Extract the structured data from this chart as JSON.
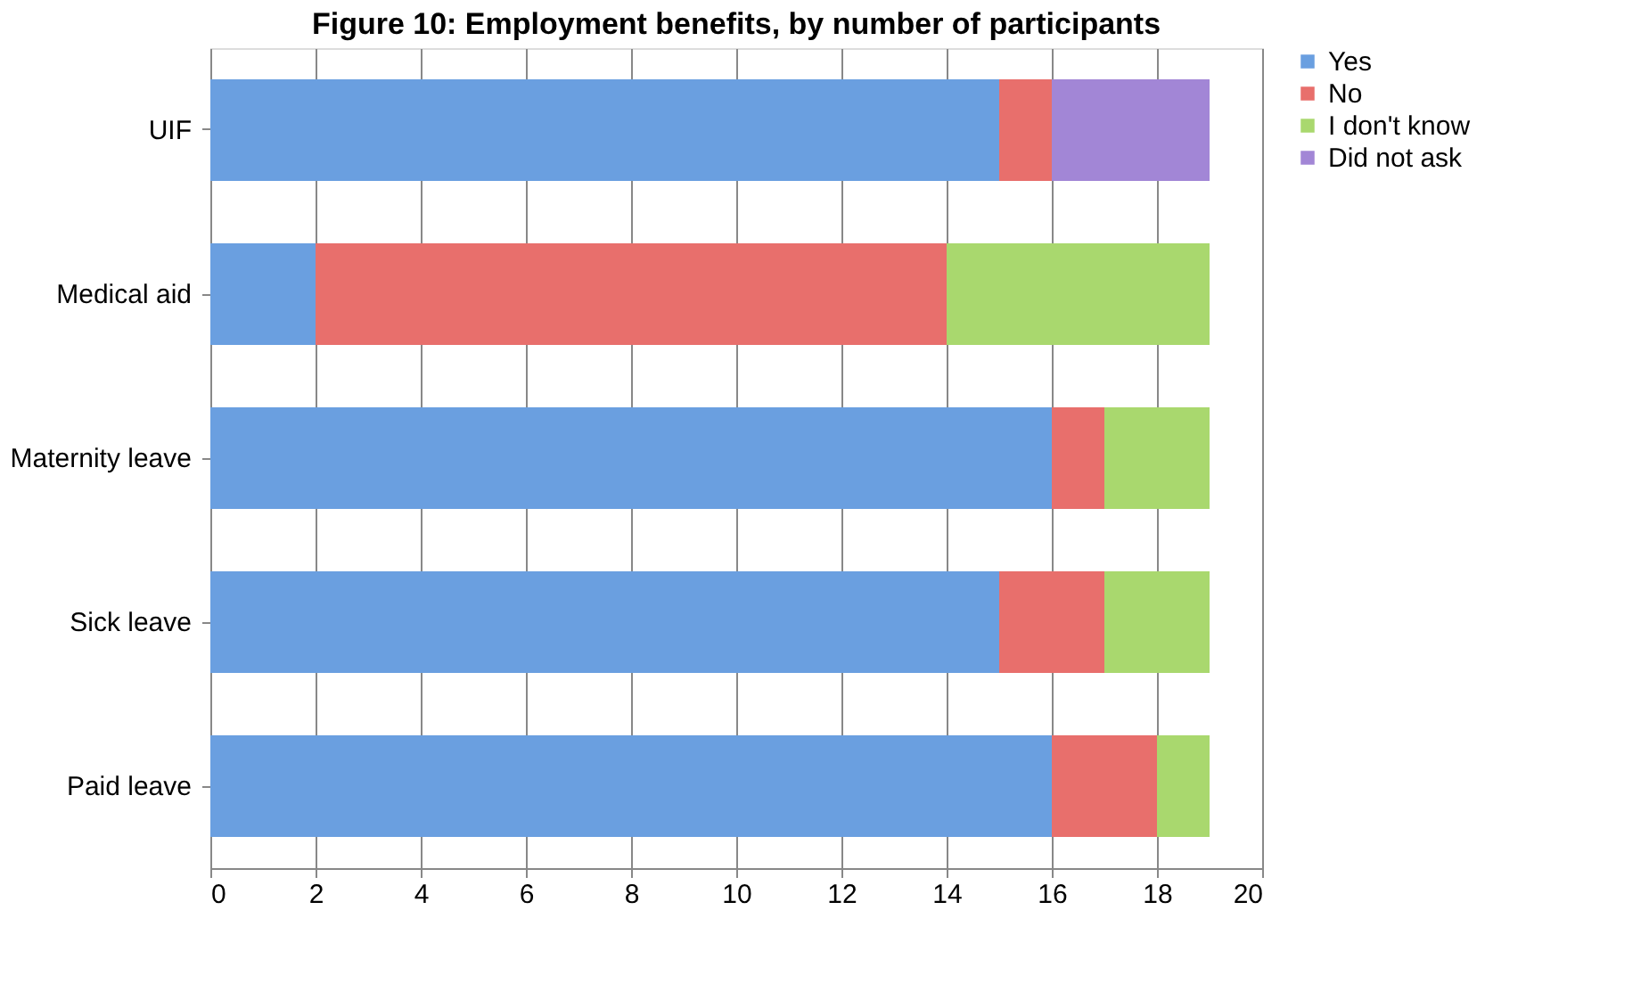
{
  "chart_data": {
    "type": "bar",
    "orientation": "horizontal",
    "stacked": true,
    "title": "Figure 10: Employment benefits, by number of participants",
    "categories": [
      "UIF",
      "Medical aid",
      "Maternity leave",
      "Sick leave",
      "Paid leave"
    ],
    "series": [
      {
        "name": "Yes",
        "color": "#6a9fe0",
        "values": [
          15,
          2,
          16,
          15,
          16
        ]
      },
      {
        "name": "No",
        "color": "#e86f6c",
        "values": [
          1,
          12,
          1,
          2,
          2
        ]
      },
      {
        "name": "I don't know",
        "color": "#a9d86e",
        "values": [
          null,
          5,
          2,
          2,
          1
        ]
      },
      {
        "name": "Did not ask",
        "color": "#a286d6",
        "values": [
          3,
          null,
          null,
          null,
          null
        ]
      }
    ],
    "xlim": [
      0,
      20
    ],
    "xticks": [
      0,
      2,
      4,
      6,
      8,
      10,
      12,
      14,
      16,
      18,
      20
    ],
    "grid": "x",
    "legend": "right"
  }
}
